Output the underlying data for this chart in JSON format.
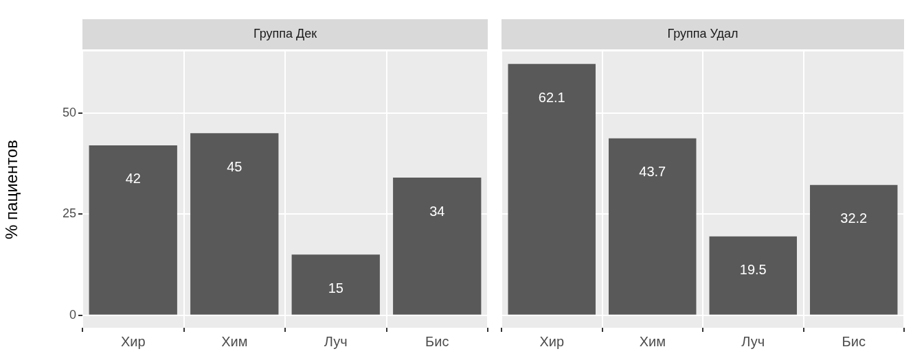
{
  "chart_data": [
    {
      "type": "bar",
      "title": "Группа Дек",
      "ylabel": "% пациентов",
      "categories": [
        "Хир",
        "Хим",
        "Луч",
        "Бис"
      ],
      "values": [
        42,
        45,
        15,
        34
      ],
      "color": "#595959",
      "ylim": [
        -3.105,
        65.205
      ],
      "yticks": [
        0,
        25,
        50
      ],
      "grid": true,
      "data_labels": true
    },
    {
      "type": "bar",
      "title": "Группа Удал",
      "categories": [
        "Хир",
        "Хим",
        "Луч",
        "Бис"
      ],
      "values": [
        62.1,
        43.7,
        19.5,
        32.2
      ],
      "color": "#595959",
      "ylim": [
        -3.105,
        65.205
      ],
      "yticks": [
        0,
        25,
        50
      ],
      "grid": true,
      "data_labels": true,
      "tick_labels": "x"
    }
  ]
}
